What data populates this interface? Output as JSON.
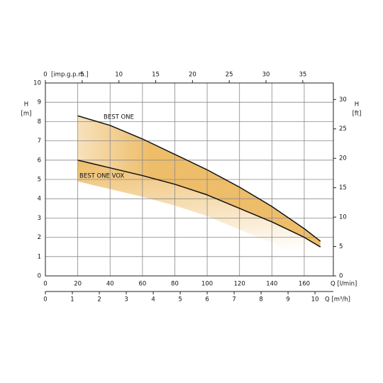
{
  "chart_data": {
    "type": "line",
    "x": [
      20,
      40,
      60,
      80,
      100,
      120,
      140,
      160,
      170
    ],
    "series": [
      {
        "name": "BEST ONE",
        "color": "#111111",
        "values": [
          8.3,
          7.8,
          7.1,
          6.3,
          5.5,
          4.6,
          3.6,
          2.45,
          1.8
        ]
      },
      {
        "name": "BEST ONE VOX",
        "color": "#111111",
        "values": [
          6.0,
          5.6,
          5.2,
          4.75,
          4.2,
          3.5,
          2.8,
          2.0,
          1.5
        ]
      }
    ],
    "fill_color": "#eebd6a",
    "xlabel": "Q [l/min]",
    "xlim": [
      0,
      178
    ],
    "xticks": [
      0,
      20,
      40,
      60,
      80,
      100,
      120,
      140,
      160
    ],
    "x_top": {
      "label": "[imp.g.p.m.]",
      "lim": [
        0,
        39.16
      ],
      "ticks": [
        0,
        5,
        10,
        15,
        20,
        25,
        30,
        35
      ]
    },
    "x_bottom2": {
      "label": "Q [m³/h]",
      "lim": [
        0,
        10.68
      ],
      "ticks": [
        0,
        1,
        2,
        3,
        4,
        5,
        6,
        7,
        8,
        9,
        10
      ]
    },
    "ylabel": "H",
    "yunit": "[m]",
    "ylim": [
      0,
      10
    ],
    "yticks": [
      0,
      1,
      2,
      3,
      4,
      5,
      6,
      7,
      8,
      9,
      10
    ],
    "y2label": "H",
    "y2unit": "[ft]",
    "y2lim": [
      0,
      32.81
    ],
    "y2ticks": [
      0,
      5,
      10,
      15,
      20,
      25,
      30
    ],
    "grid": true
  }
}
